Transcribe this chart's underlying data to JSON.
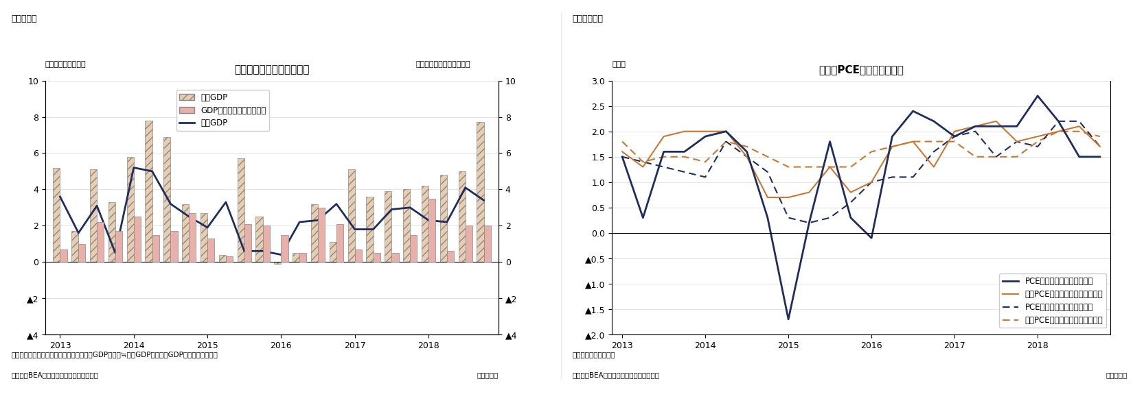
{
  "fig9": {
    "title": "米国の名目と実質の成長率",
    "subtitle_left": "（前期比年率、％）",
    "subtitle_right": "（前期比年率、％、逆軸）",
    "fig_label": "（図表９）",
    "legend_nominal": "名目GDP",
    "legend_deflator": "GDPデフレータ（右逆軸）",
    "legend_real": "実質GDP",
    "note1": "（注）季節調整済系列の前期比年率、実質GDP伸び率≒名目GDP伸び率－GDPデフレータ伸び率",
    "note2": "（資料）BEAよりニッセイ基礎研究所作成",
    "note3": "（四半期）",
    "nominal_gdp": [
      5.2,
      1.7,
      5.1,
      3.3,
      5.8,
      7.8,
      6.9,
      3.2,
      2.7,
      0.4,
      5.7,
      2.5,
      -0.1,
      0.5,
      3.2,
      1.1,
      5.1,
      3.6,
      3.9,
      4.0,
      4.2,
      4.8,
      5.0,
      7.7
    ],
    "gdp_deflator": [
      -0.7,
      -1.0,
      -2.2,
      -1.7,
      -2.5,
      -1.5,
      -1.7,
      -2.7,
      -1.3,
      -0.3,
      -2.1,
      -2.0,
      -1.5,
      -0.5,
      -3.0,
      -2.1,
      -0.7,
      -0.5,
      -0.5,
      -1.5,
      -3.5,
      -0.6,
      -2.0,
      -2.0
    ],
    "real_gdp": [
      3.6,
      1.6,
      3.1,
      0.5,
      5.2,
      5.0,
      3.2,
      2.5,
      1.9,
      3.3,
      0.6,
      0.6,
      0.4,
      2.2,
      2.3,
      3.2,
      1.8,
      1.8,
      2.9,
      3.0,
      2.3,
      2.2,
      4.1,
      3.4
    ],
    "xtick_years": [
      "2013",
      "2014",
      "2015",
      "2016",
      "2017",
      "2018"
    ],
    "nominal_color": "#dfc0a0",
    "deflator_color": "#e8b8b0",
    "real_gdp_color": "#1e2d5e"
  },
  "fig10": {
    "title": "米国のPCE価格指数伸び率",
    "subtitle_left": "（％）",
    "fig_label": "（図表１０）",
    "legend_pce_qoq": "PCE価格指数（前期比年率）",
    "legend_core_qoq": "コアPCE価格指数（前期比年率）",
    "legend_pce_yoy": "PCE価格指数（前年同期比）",
    "legend_core_yoy": "コアPCE価格指数（前年同期比）",
    "note1": "（注）季節調整済系列",
    "note2": "（資料）BEAよりニッセイ基礎研究所作成",
    "note3": "（四半期）",
    "pce_qoq": [
      1.5,
      0.3,
      1.6,
      1.6,
      1.9,
      2.0,
      1.6,
      0.3,
      -1.7,
      0.2,
      1.8,
      0.3,
      -0.1,
      1.9,
      2.4,
      2.2,
      1.9,
      2.1,
      2.1,
      2.1,
      2.7,
      2.2,
      1.5,
      1.5
    ],
    "core_pce_qoq": [
      1.6,
      1.3,
      1.9,
      2.0,
      2.0,
      2.0,
      1.5,
      0.7,
      0.7,
      0.8,
      1.3,
      0.8,
      1.0,
      1.7,
      1.8,
      1.3,
      2.0,
      2.1,
      2.2,
      1.8,
      1.9,
      2.0,
      2.1,
      1.7
    ],
    "pce_yoy": [
      1.5,
      1.4,
      1.3,
      1.2,
      1.1,
      1.8,
      1.5,
      1.2,
      0.3,
      0.2,
      0.3,
      0.6,
      1.0,
      1.1,
      1.1,
      1.6,
      1.9,
      2.0,
      1.5,
      1.8,
      1.7,
      2.2,
      2.2,
      1.7
    ],
    "core_pce_yoy": [
      1.8,
      1.4,
      1.5,
      1.5,
      1.4,
      1.8,
      1.7,
      1.5,
      1.3,
      1.3,
      1.3,
      1.3,
      1.6,
      1.7,
      1.8,
      1.8,
      1.8,
      1.5,
      1.5,
      1.5,
      1.8,
      2.0,
      2.0,
      1.9
    ],
    "xtick_years": [
      "2013",
      "2014",
      "2015",
      "2016",
      "2017",
      "2018"
    ],
    "pce_qoq_color": "#1e2d5e",
    "core_pce_qoq_color": "#c87832",
    "pce_yoy_color": "#1e2d5e",
    "core_pce_yoy_color": "#c87832"
  }
}
